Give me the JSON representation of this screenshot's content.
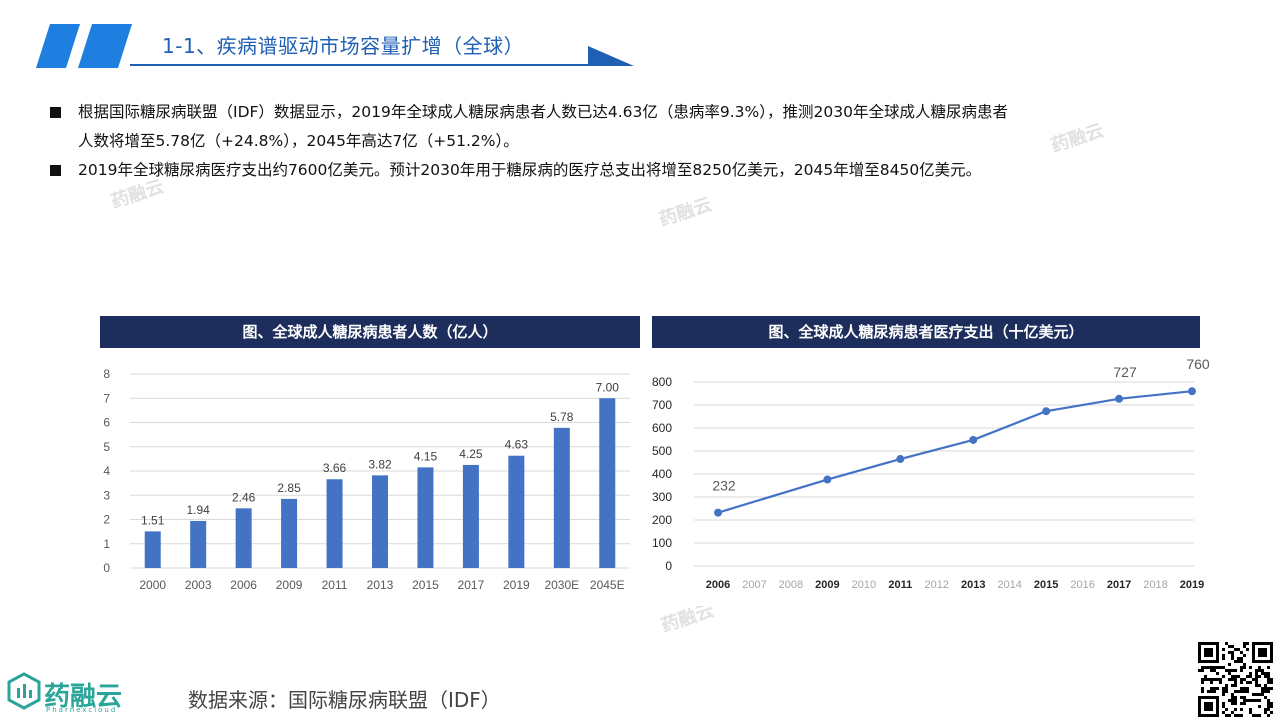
{
  "header": {
    "title": "1-1、疾病谱驱动市场容量扩增（全球）"
  },
  "bullets": [
    {
      "line1": "根据国际糖尿病联盟（IDF）数据显示，2019年全球成人糖尿病患者人数已达4.63亿（患病率9.3%），推测2030年全球成人糖尿病患者",
      "line2": "人数将增至5.78亿（+24.8%），2045年高达7亿（+51.2%）。"
    },
    {
      "line1": "2019年全球糖尿病医疗支出约7600亿美元。预计2030年用于糖尿病的医疗总支出将增至8250亿美元，2045年增至8450亿美元。"
    }
  ],
  "charts": {
    "left_title": "图、全球成人糖尿病患者人数（亿人）",
    "right_title": "图、全球成人糖尿病患者医疗支出（十亿美元）"
  },
  "chart_data": [
    {
      "type": "bar",
      "title": "图、全球成人糖尿病患者人数（亿人）",
      "categories": [
        "2000",
        "2003",
        "2006",
        "2009",
        "2011",
        "2013",
        "2015",
        "2017",
        "2019",
        "2030E",
        "2045E"
      ],
      "values": [
        1.51,
        1.94,
        2.46,
        2.85,
        3.66,
        3.82,
        4.15,
        4.25,
        4.63,
        5.78,
        7.0
      ],
      "value_labels": [
        "1.51",
        "1.94",
        "2.46",
        "2.85",
        "3.66",
        "3.82",
        "4.15",
        "4.25",
        "4.63",
        "5.78",
        "7.00"
      ],
      "ylim": [
        0,
        8
      ],
      "yticks": [
        "0",
        "1",
        "2",
        "3",
        "4",
        "5",
        "6",
        "7",
        "8"
      ],
      "grid": true,
      "color": "#4472c4"
    },
    {
      "type": "line",
      "title": "图、全球成人糖尿病患者医疗支出（十亿美元）",
      "x": [
        "2006",
        "2007",
        "2008",
        "2009",
        "2010",
        "2011",
        "2012",
        "2013",
        "2014",
        "2015",
        "2016",
        "2017",
        "2018",
        "2019"
      ],
      "x_emphasis": [
        true,
        false,
        false,
        true,
        false,
        true,
        false,
        true,
        false,
        true,
        false,
        true,
        false,
        true
      ],
      "points": [
        {
          "x": "2006",
          "y": 232
        },
        {
          "x": "2009",
          "y": 376
        },
        {
          "x": "2011",
          "y": 465
        },
        {
          "x": "2013",
          "y": 548
        },
        {
          "x": "2015",
          "y": 673
        },
        {
          "x": "2017",
          "y": 727
        },
        {
          "x": "2019",
          "y": 760
        }
      ],
      "point_labels": [
        {
          "x": "2006",
          "text": "232"
        },
        {
          "x": "2017",
          "text": "727"
        },
        {
          "x": "2019",
          "text": "760"
        }
      ],
      "ylim": [
        0,
        800
      ],
      "yticks": [
        "0",
        "100",
        "200",
        "300",
        "400",
        "500",
        "600",
        "700",
        "800"
      ],
      "grid": true,
      "color": "#4472c4"
    }
  ],
  "watermarks": [
    "药融云",
    "药融云",
    "药融云",
    "药融云"
  ],
  "footer": {
    "logo_name": "药融云",
    "logo_sub": "Pharnexcloud",
    "source": "数据来源：国际糖尿病联盟（IDF）"
  },
  "colors": {
    "accent": "#1f5fb4",
    "title_bar": "#1d2d5c",
    "series": "#4472c4",
    "logo": "#2aa59a"
  }
}
